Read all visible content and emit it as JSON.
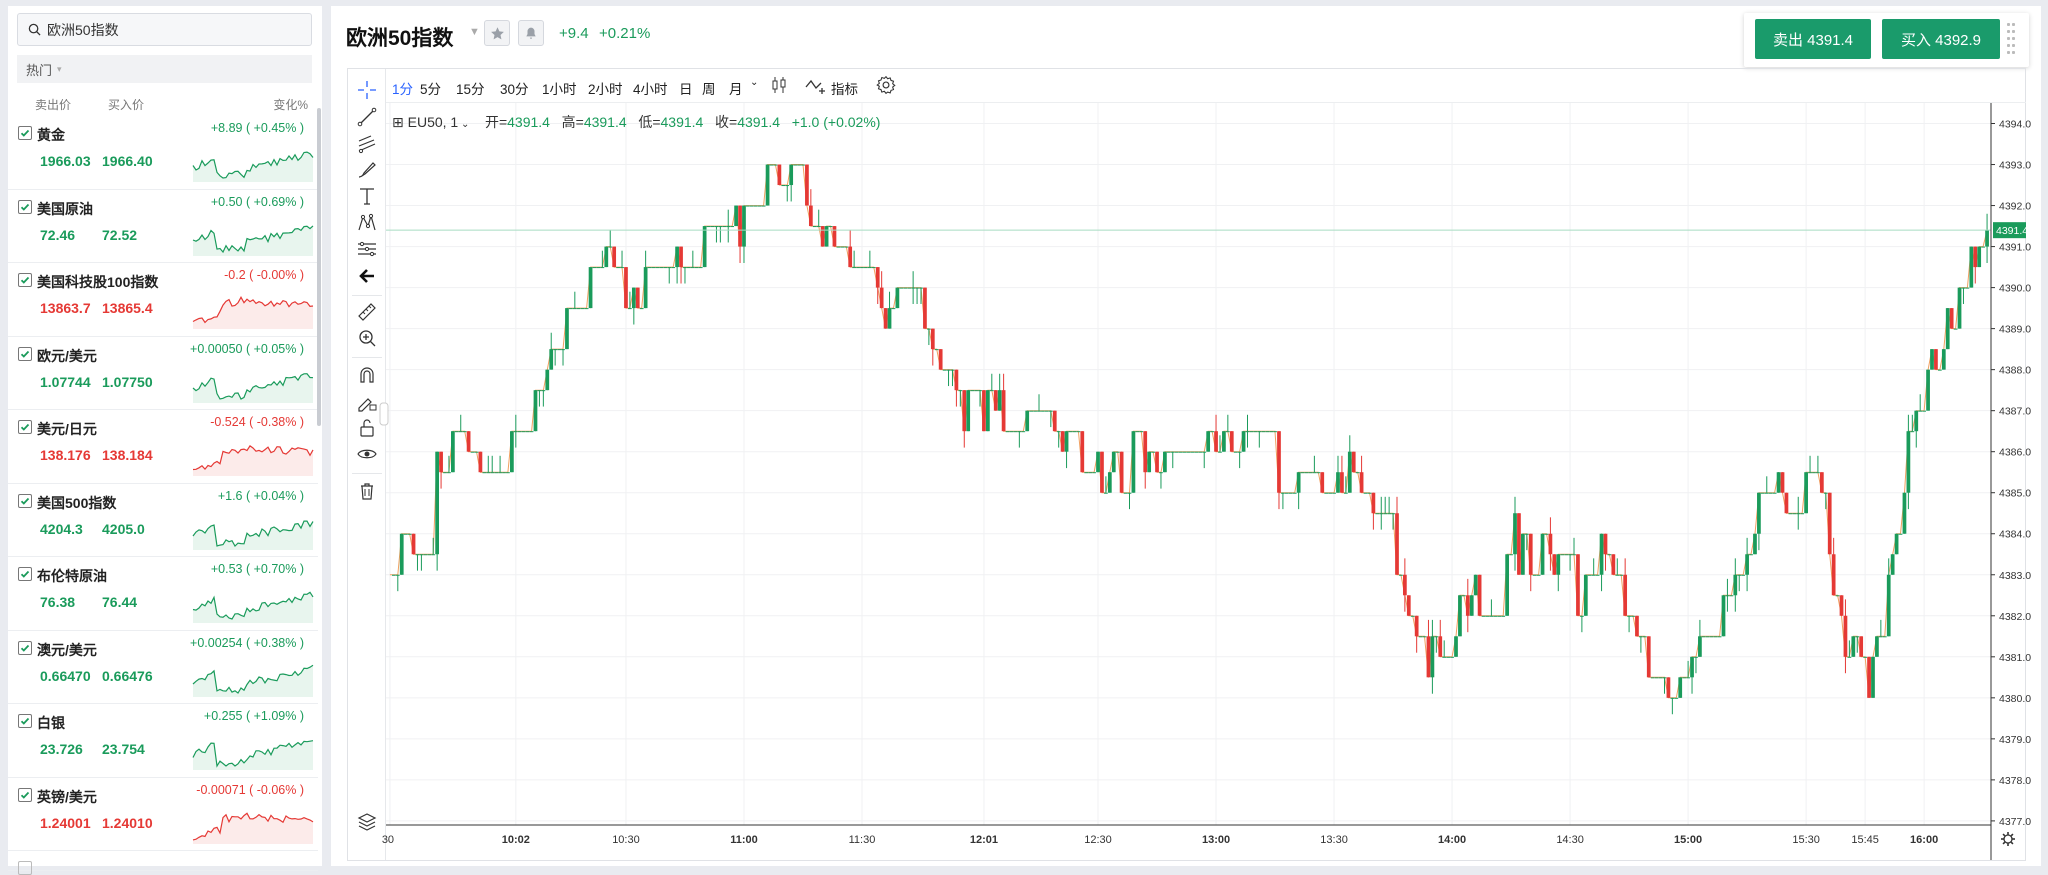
{
  "watchlist": {
    "search_value": "欧洲50指数",
    "category": "热门",
    "headers": {
      "bid": "卖出价",
      "ask": "买入价",
      "change": "变化%"
    },
    "items": [
      {
        "name": "黄金",
        "bid": "1966.03",
        "ask": "1966.40",
        "change": "+8.89 ( +0.45% )",
        "trend": "up"
      },
      {
        "name": "美国原油",
        "bid": "72.46",
        "ask": "72.52",
        "change": "+0.50 ( +0.69% )",
        "trend": "up"
      },
      {
        "name": "美国科技股100指数",
        "bid": "13863.7",
        "ask": "13865.4",
        "change": "-0.2 ( -0.00% )",
        "trend": "down"
      },
      {
        "name": "欧元/美元",
        "bid": "1.07744",
        "ask": "1.07750",
        "change": "+0.00050 ( +0.05% )",
        "trend": "up"
      },
      {
        "name": "美元/日元",
        "bid": "138.176",
        "ask": "138.184",
        "change": "-0.524 ( -0.38% )",
        "trend": "down"
      },
      {
        "name": "美国500指数",
        "bid": "4204.3",
        "ask": "4205.0",
        "change": "+1.6 ( +0.04% )",
        "trend": "up"
      },
      {
        "name": "布伦特原油",
        "bid": "76.38",
        "ask": "76.44",
        "change": "+0.53 ( +0.70% )",
        "trend": "up"
      },
      {
        "name": "澳元/美元",
        "bid": "0.66470",
        "ask": "0.66476",
        "change": "+0.00254 ( +0.38% )",
        "trend": "up"
      },
      {
        "name": "白银",
        "bid": "23.726",
        "ask": "23.754",
        "change": "+0.255 ( +1.09% )",
        "trend": "up"
      },
      {
        "name": "英镑/美元",
        "bid": "1.24001",
        "ask": "1.24010",
        "change": "-0.00071 ( -0.06% )",
        "trend": "down"
      }
    ]
  },
  "instrument": {
    "title": "欧洲50指数",
    "change_abs": "+9.4",
    "change_pct": "+0.21%"
  },
  "trade": {
    "sell_label": "卖出 4391.4",
    "buy_label": "买入 4392.9"
  },
  "timeframes": [
    "1分",
    "5分",
    "15分",
    "30分",
    "1小时",
    "2小时",
    "4小时",
    "日",
    "周",
    "月"
  ],
  "active_timeframe": "1分",
  "indicator_label": "指标",
  "ohlc": {
    "symbol": "EU50, 1",
    "open_label": "开=",
    "open": "4391.4",
    "high_label": "高=",
    "high": "4391.4",
    "low_label": "低=",
    "low": "4391.4",
    "close_label": "收=",
    "close": "4391.4",
    "change": "+1.0 (+0.02%)"
  },
  "colors": {
    "up": "#1a9b5b",
    "down": "#e53935",
    "accent": "#2962ff",
    "button": "#1a9b6b"
  },
  "chart_data": {
    "type": "candlestick",
    "ylim": [
      4376.9,
      4394.5
    ],
    "y_ticks": [
      "4377.0",
      "4378.0",
      "4379.0",
      "4380.0",
      "4381.0",
      "4382.0",
      "4383.0",
      "4384.0",
      "4385.0",
      "4386.0",
      "4387.0",
      "4388.0",
      "4389.0",
      "4390.0",
      "4391.0",
      "4392.0",
      "4393.0",
      "4394.0"
    ],
    "x_ticks": [
      {
        "label": "30",
        "t": 0,
        "bold": false
      },
      {
        "label": "10:02",
        "t": 32,
        "bold": true
      },
      {
        "label": "10:30",
        "t": 60,
        "bold": false
      },
      {
        "label": "11:00",
        "t": 90,
        "bold": true
      },
      {
        "label": "11:30",
        "t": 120,
        "bold": false
      },
      {
        "label": "12:01",
        "t": 151,
        "bold": true
      },
      {
        "label": "12:30",
        "t": 180,
        "bold": false
      },
      {
        "label": "13:00",
        "t": 210,
        "bold": true
      },
      {
        "label": "13:30",
        "t": 240,
        "bold": false
      },
      {
        "label": "14:00",
        "t": 270,
        "bold": true
      },
      {
        "label": "14:30",
        "t": 300,
        "bold": false
      },
      {
        "label": "15:00",
        "t": 330,
        "bold": true
      },
      {
        "label": "15:30",
        "t": 360,
        "bold": false
      },
      {
        "label": "15:45",
        "t": 375,
        "bold": false
      },
      {
        "label": "16:00",
        "t": 390,
        "bold": true
      }
    ],
    "t_range": [
      -1,
      407
    ],
    "last_price": "4391.4",
    "last_price_value": 4391.4,
    "anchors": [
      [
        0,
        4383.5
      ],
      [
        8,
        4384.0
      ],
      [
        12,
        4385.5
      ],
      [
        20,
        4386.0
      ],
      [
        24,
        4385.5
      ],
      [
        32,
        4386.5
      ],
      [
        40,
        4388.0
      ],
      [
        46,
        4389.5
      ],
      [
        52,
        4390.5
      ],
      [
        58,
        4390.0
      ],
      [
        66,
        4389.8
      ],
      [
        72,
        4390.5
      ],
      [
        80,
        4391.2
      ],
      [
        88,
        4391.5
      ],
      [
        96,
        4392.5
      ],
      [
        104,
        4392.8
      ],
      [
        110,
        4391.5
      ],
      [
        118,
        4390.5
      ],
      [
        126,
        4389.8
      ],
      [
        132,
        4389.2
      ],
      [
        138,
        4388.5
      ],
      [
        142,
        4387.5
      ],
      [
        150,
        4387.0
      ],
      [
        160,
        4386.8
      ],
      [
        168,
        4386.5
      ],
      [
        176,
        4385.5
      ],
      [
        186,
        4385.7
      ],
      [
        196,
        4386.3
      ],
      [
        204,
        4386.5
      ],
      [
        212,
        4385.8
      ],
      [
        220,
        4386.0
      ],
      [
        230,
        4385.5
      ],
      [
        240,
        4385.3
      ],
      [
        250,
        4385.0
      ],
      [
        256,
        4383.5
      ],
      [
        262,
        4381.0
      ],
      [
        270,
        4381.5
      ],
      [
        278,
        4382.5
      ],
      [
        286,
        4383.8
      ],
      [
        294,
        4383.3
      ],
      [
        300,
        4382.5
      ],
      [
        308,
        4383.5
      ],
      [
        316,
        4381.5
      ],
      [
        324,
        4380.0
      ],
      [
        330,
        4381.0
      ],
      [
        336,
        4382.0
      ],
      [
        344,
        4383.5
      ],
      [
        350,
        4385.5
      ],
      [
        356,
        4384.5
      ],
      [
        362,
        4385.8
      ],
      [
        370,
        4381.5
      ],
      [
        376,
        4380.5
      ],
      [
        382,
        4383.5
      ],
      [
        388,
        4387.0
      ],
      [
        394,
        4388.5
      ],
      [
        398,
        4389.5
      ],
      [
        404,
        4391.0
      ],
      [
        406,
        4391.4
      ]
    ]
  }
}
